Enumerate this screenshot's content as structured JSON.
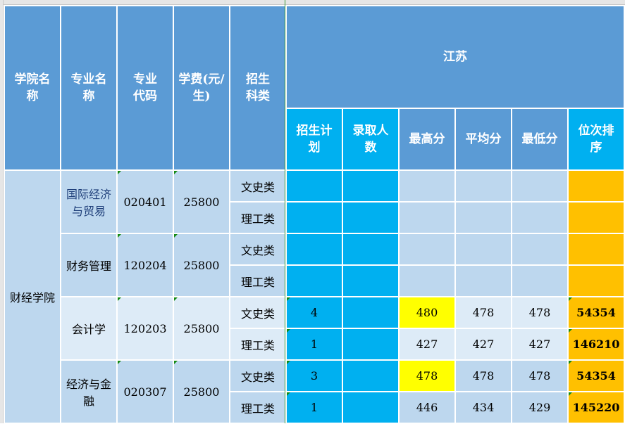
{
  "header": {
    "college": "学院名称",
    "major": "专业名称",
    "code": "专业代码",
    "fee": "学费(元/生)",
    "category": "招生科类",
    "province": "江苏",
    "sub": [
      "招生计划",
      "录取人数",
      "最高分",
      "平均分",
      "最低分",
      "位次排序"
    ]
  },
  "college_name": "财经学院",
  "majors": [
    {
      "name": "国际经济与贸易",
      "code": "020401",
      "fee": "25800",
      "rows": [
        {
          "cat": "文史类",
          "plan": "",
          "admit": "",
          "max": "",
          "avg": "",
          "min": "",
          "rank": ""
        },
        {
          "cat": "理工类",
          "plan": "",
          "admit": "",
          "max": "",
          "avg": "",
          "min": "",
          "rank": ""
        }
      ]
    },
    {
      "name": "财务管理",
      "code": "120204",
      "fee": "25800",
      "rows": [
        {
          "cat": "文史类",
          "plan": "",
          "admit": "",
          "max": "",
          "avg": "",
          "min": "",
          "rank": ""
        },
        {
          "cat": "理工类",
          "plan": "",
          "admit": "",
          "max": "",
          "avg": "",
          "min": "",
          "rank": ""
        }
      ]
    },
    {
      "name": "会计学",
      "code": "120203",
      "fee": "25800",
      "rows": [
        {
          "cat": "文史类",
          "plan": "4",
          "admit": "",
          "max": "480",
          "avg": "478",
          "min": "478",
          "rank": "54354"
        },
        {
          "cat": "理工类",
          "plan": "1",
          "admit": "",
          "max": "427",
          "avg": "427",
          "min": "427",
          "rank": "146210"
        }
      ]
    },
    {
      "name": "经济与金融",
      "code": "020307",
      "fee": "25800",
      "rows": [
        {
          "cat": "文史类",
          "plan": "3",
          "admit": "",
          "max": "478",
          "avg": "478",
          "min": "478",
          "rank": "54354"
        },
        {
          "cat": "理工类",
          "plan": "1",
          "admit": "",
          "max": "446",
          "avg": "434",
          "min": "429",
          "rank": "145220"
        }
      ]
    }
  ],
  "colors": {
    "header": "#5B9BD5",
    "sub_header": "#00B0F0",
    "row_light": "#BDD7EE",
    "row_lighter": "#DDEBF7",
    "highlight_max": "#FFFF00",
    "rank": "#FFC000"
  }
}
